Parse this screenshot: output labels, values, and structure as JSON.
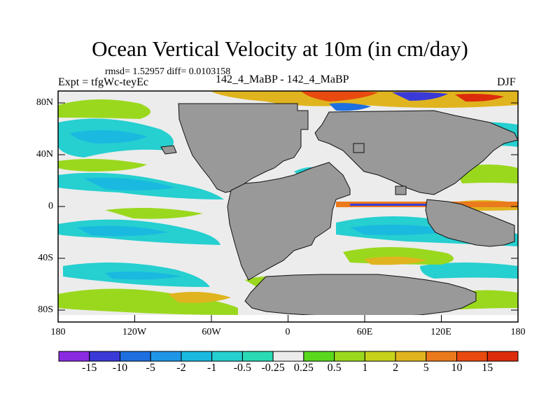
{
  "header": {
    "title": "Ocean Vertical Velocity at 10m (in cm/day)",
    "stats": "rmsd= 1.52957 diff= 0.0103158",
    "experiment": "Expt = tfgWc-teyEc",
    "comparison": "142_4_MaBP - 142_4_MaBP",
    "season": "DJF"
  },
  "axes": {
    "y_labels": [
      "80N",
      "40N",
      "0",
      "40S",
      "80S"
    ],
    "x_labels": [
      "180",
      "120W",
      "60W",
      "0",
      "60E",
      "120E",
      "180"
    ]
  },
  "colorbar": {
    "labels": [
      "-15",
      "-10",
      "-5",
      "-2",
      "-1",
      "-0.5",
      "-0.25",
      "0.25",
      "0.5",
      "1",
      "2",
      "5",
      "10",
      "15"
    ],
    "colors": [
      "#8a2be2",
      "#3a3ad8",
      "#1e6fe0",
      "#1e96e6",
      "#19b9e0",
      "#26cfd0",
      "#2ad9b5",
      "#ececec",
      "#5ad81e",
      "#9ad81e",
      "#c6d21a",
      "#e0b41e",
      "#ea7a1c",
      "#e84a10",
      "#dc2c0c"
    ]
  },
  "map": {
    "land_color": "#999999",
    "near_zero_color": "#ececec"
  }
}
